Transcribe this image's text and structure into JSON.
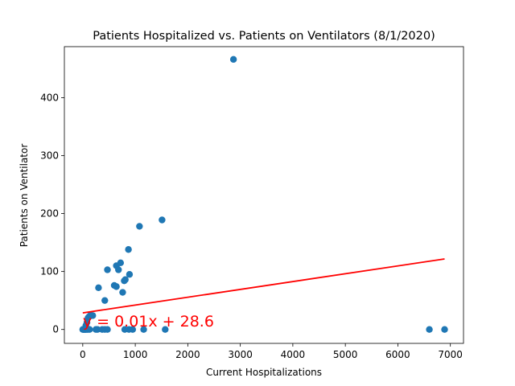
{
  "chart_data": {
    "type": "scatter",
    "title": "Patients Hospitalized vs. Patients on Ventilators (8/1/2020)",
    "xlabel": "Current Hospitalizations",
    "ylabel": "Patients on Ventilator",
    "xlim": [
      -350,
      7250
    ],
    "ylim": [
      -24,
      488
    ],
    "xticks": [
      0,
      1000,
      2000,
      3000,
      4000,
      5000,
      6000,
      7000
    ],
    "yticks": [
      0,
      100,
      200,
      300,
      400
    ],
    "grid": false,
    "point_color": "#1f77b4",
    "points": [
      {
        "x": 0,
        "y": 0
      },
      {
        "x": 10,
        "y": 0
      },
      {
        "x": 20,
        "y": 0
      },
      {
        "x": 30,
        "y": 0
      },
      {
        "x": 40,
        "y": 0
      },
      {
        "x": 50,
        "y": 0
      },
      {
        "x": 60,
        "y": 0
      },
      {
        "x": 80,
        "y": 0
      },
      {
        "x": 100,
        "y": 0
      },
      {
        "x": 130,
        "y": 0
      },
      {
        "x": 60,
        "y": 7
      },
      {
        "x": 80,
        "y": 12
      },
      {
        "x": 100,
        "y": 20
      },
      {
        "x": 120,
        "y": 22
      },
      {
        "x": 150,
        "y": 25
      },
      {
        "x": 190,
        "y": 24
      },
      {
        "x": 250,
        "y": 0
      },
      {
        "x": 280,
        "y": 0
      },
      {
        "x": 370,
        "y": 0
      },
      {
        "x": 420,
        "y": 0
      },
      {
        "x": 470,
        "y": 0
      },
      {
        "x": 300,
        "y": 72
      },
      {
        "x": 420,
        "y": 50
      },
      {
        "x": 470,
        "y": 103
      },
      {
        "x": 600,
        "y": 76
      },
      {
        "x": 640,
        "y": 74
      },
      {
        "x": 640,
        "y": 110
      },
      {
        "x": 680,
        "y": 103
      },
      {
        "x": 720,
        "y": 115
      },
      {
        "x": 760,
        "y": 64
      },
      {
        "x": 790,
        "y": 84
      },
      {
        "x": 810,
        "y": 86
      },
      {
        "x": 800,
        "y": 0
      },
      {
        "x": 880,
        "y": 0
      },
      {
        "x": 950,
        "y": 0
      },
      {
        "x": 870,
        "y": 138
      },
      {
        "x": 890,
        "y": 95
      },
      {
        "x": 1080,
        "y": 178
      },
      {
        "x": 1160,
        "y": 0
      },
      {
        "x": 1510,
        "y": 189
      },
      {
        "x": 1570,
        "y": 0
      },
      {
        "x": 2870,
        "y": 466
      },
      {
        "x": 6600,
        "y": 0
      },
      {
        "x": 6890,
        "y": 0
      }
    ],
    "regression": {
      "color": "#ff0000",
      "slope": 0.01351,
      "intercept": 28.6,
      "x_start": 0,
      "x_end": 6890,
      "equation_label": "y = 0.01x + 28.6",
      "label_x": 0,
      "label_y": 5
    }
  }
}
